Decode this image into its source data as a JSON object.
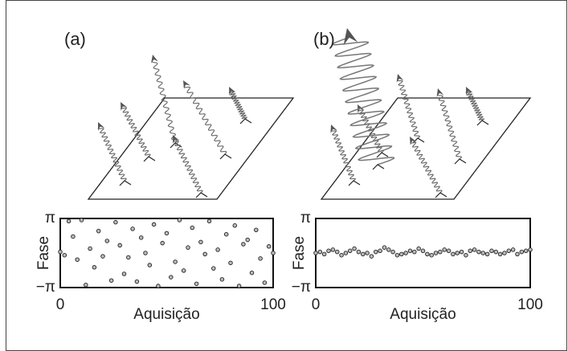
{
  "chart_data": [
    {
      "type": "scatter",
      "title": "(a)",
      "xlabel": "Aquisição",
      "ylabel": "Fase",
      "x": [
        0,
        2,
        4,
        6,
        8,
        10,
        12,
        14,
        16,
        18,
        20,
        22,
        24,
        26,
        28,
        30,
        32,
        34,
        36,
        38,
        40,
        42,
        44,
        46,
        48,
        50,
        52,
        54,
        56,
        58,
        60,
        62,
        64,
        66,
        68,
        70,
        72,
        74,
        76,
        78,
        80,
        82,
        84,
        86,
        88,
        90,
        92,
        94,
        96,
        98,
        100
      ],
      "values": [
        0.1,
        -0.2,
        2.9,
        1.5,
        -0.6,
        3.0,
        -2.9,
        0.4,
        -1.3,
        2.0,
        -0.3,
        1.1,
        -2.5,
        2.8,
        0.7,
        -1.9,
        -0.4,
        2.2,
        -2.6,
        1.4,
        0.0,
        -1.1,
        2.6,
        -3.0,
        0.9,
        1.8,
        -2.2,
        -0.8,
        3.0,
        -1.6,
        0.5,
        2.3,
        -2.8,
        1.0,
        -0.1,
        2.9,
        -1.4,
        0.3,
        -2.4,
        1.7,
        -0.9,
        2.5,
        -3.0,
        0.8,
        1.2,
        -1.8,
        2.1,
        -0.5,
        -2.7,
        0.6,
        0.0
      ],
      "xlim": [
        0,
        100
      ],
      "xticks": [
        0,
        100
      ],
      "ylim": [
        -3.1416,
        3.1416
      ],
      "yticks": [
        {
          "value": -3.1416,
          "label": "−π"
        },
        {
          "value": 3.1416,
          "label": "π"
        }
      ]
    },
    {
      "type": "scatter",
      "title": "(b)",
      "xlabel": "Aquisição",
      "ylabel": "Fase",
      "x": [
        0,
        2,
        4,
        6,
        8,
        10,
        12,
        14,
        16,
        18,
        20,
        22,
        24,
        26,
        28,
        30,
        32,
        34,
        36,
        38,
        40,
        42,
        44,
        46,
        48,
        50,
        52,
        54,
        56,
        58,
        60,
        62,
        64,
        66,
        68,
        70,
        72,
        74,
        76,
        78,
        80,
        82,
        84,
        86,
        88,
        90,
        92,
        94,
        96,
        98,
        100
      ],
      "values": [
        0.0,
        0.1,
        -0.1,
        0.2,
        0.3,
        0.1,
        -0.2,
        0.0,
        0.2,
        0.4,
        0.1,
        -0.1,
        0.0,
        -0.3,
        0.1,
        0.2,
        0.5,
        0.3,
        0.1,
        -0.2,
        -0.1,
        0.0,
        0.2,
        0.1,
        0.4,
        0.2,
        -0.1,
        -0.2,
        0.0,
        0.1,
        0.3,
        0.2,
        -0.1,
        0.0,
        0.1,
        -0.2,
        0.2,
        0.3,
        0.1,
        0.0,
        -0.1,
        0.2,
        0.1,
        -0.1,
        0.0,
        0.2,
        0.3,
        -0.1,
        0.1,
        0.2,
        0.3
      ],
      "xlim": [
        0,
        100
      ],
      "xticks": [
        0,
        100
      ],
      "ylim": [
        -3.1416,
        3.1416
      ],
      "yticks": [
        {
          "value": -3.1416,
          "label": "−π"
        },
        {
          "value": 3.1416,
          "label": "π"
        }
      ]
    }
  ]
}
